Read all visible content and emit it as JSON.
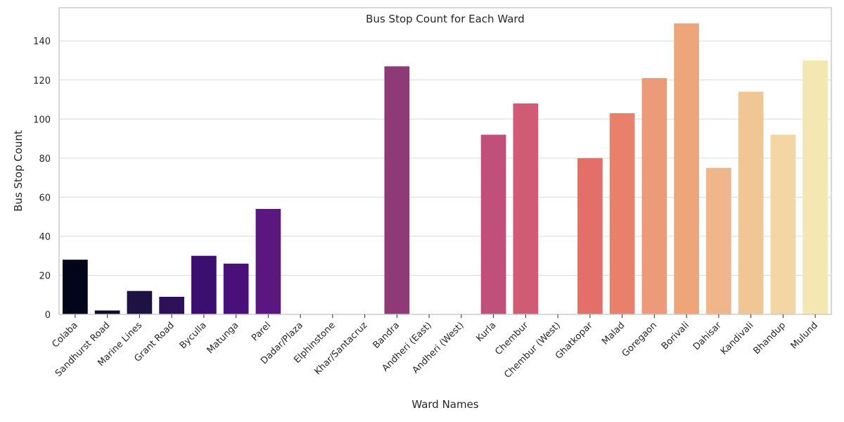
{
  "chart_data": {
    "type": "bar",
    "title": "Bus Stop Count for Each Ward",
    "xlabel": "Ward Names",
    "ylabel": "Bus Stop Count",
    "ylim": [
      0,
      157
    ],
    "yticks": [
      0,
      20,
      40,
      60,
      80,
      100,
      120,
      140
    ],
    "grid": "horizontal",
    "categories": [
      "Colaba",
      "Sandhurst Road",
      "Marine Lines",
      "Grant Road",
      "Byculla",
      "Matunga",
      "Parel",
      "Dadar/Plaza",
      "Elphinstone",
      "Khar/Santacruz",
      "Bandra",
      "Andheri (East)",
      "Andheri (West)",
      "Kurla",
      "Chembur",
      "Chembur (West)",
      "Ghatkopar",
      "Malad",
      "Goregaon",
      "Borivali",
      "Dahisar",
      "Kandivali",
      "Bhandup",
      "Mulund"
    ],
    "values": [
      28,
      2,
      12,
      9,
      30,
      26,
      54,
      0,
      0,
      0,
      127,
      0,
      0,
      92,
      108,
      0,
      80,
      103,
      121,
      149,
      75,
      114,
      92,
      130
    ],
    "colors": [
      "#03051a",
      "#0f0b2f",
      "#1e1245",
      "#2c1159",
      "#3b0f70",
      "#4a1079",
      "#5c167f",
      "#6e1e81",
      "#7f2682",
      "#8f2a81",
      "#8e3a77",
      "#b3367a",
      "#c33b75",
      "#c0507a",
      "#d15b75",
      "#de4968",
      "#e46f68",
      "#e9806c",
      "#ec9a7a",
      "#eda67a",
      "#efb58b",
      "#f1c695",
      "#f3d6a3",
      "#f5e7b1"
    ]
  }
}
